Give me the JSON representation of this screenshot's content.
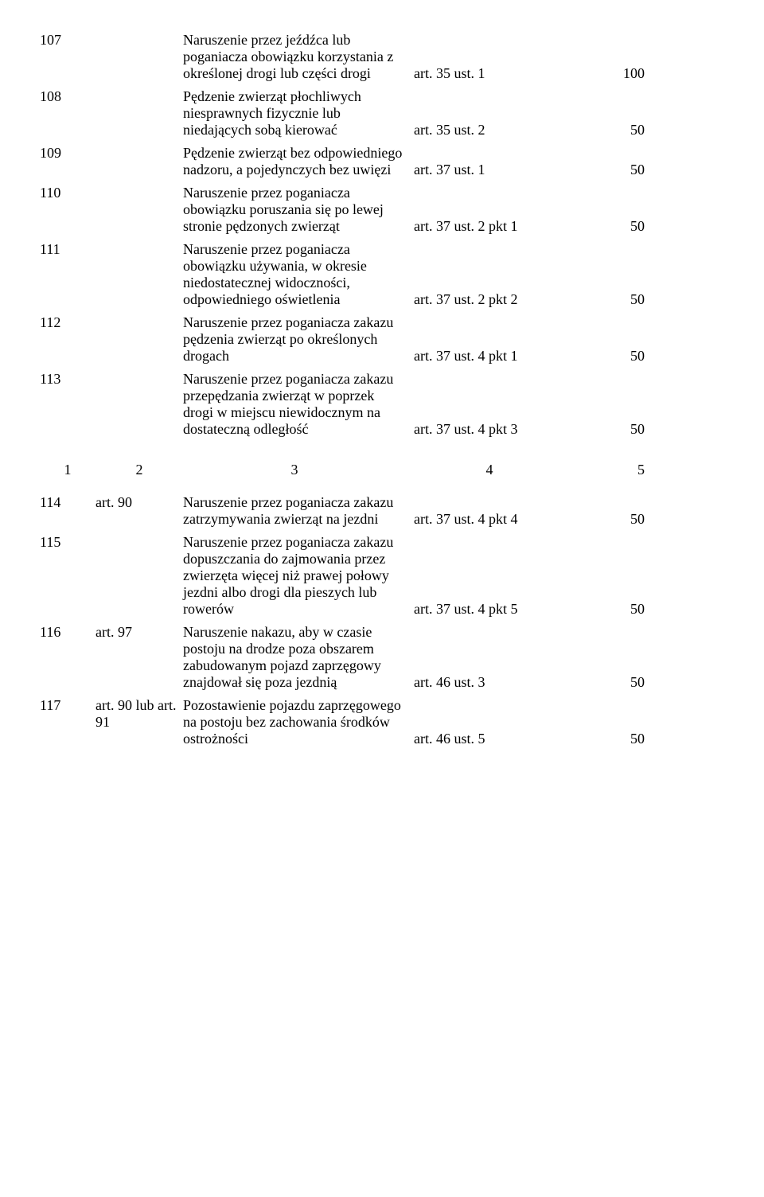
{
  "rows_upper": [
    {
      "num": "107",
      "code": "",
      "desc": "Naruszenie przez jeźdźca lub poganiacza obowiązku korzystania z określonej drogi lub części drogi",
      "ref": "art. 35 ust. 1",
      "val": "100"
    },
    {
      "num": "108",
      "code": "",
      "desc": "Pędzenie zwierząt płochliwych niesprawnych fizycznie lub niedających sobą kierować",
      "ref": "art. 35 ust. 2",
      "val": "50"
    },
    {
      "num": "109",
      "code": "",
      "desc": "Pędzenie zwierząt bez odpowiedniego nadzoru, a pojedynczych bez uwięzi",
      "ref": "art. 37 ust. 1",
      "val": "50"
    },
    {
      "num": "110",
      "code": "",
      "desc": "Naruszenie przez poganiacza obowiązku poruszania się po lewej stronie pędzonych zwierząt",
      "ref": "art. 37 ust. 2 pkt 1",
      "val": "50"
    },
    {
      "num": "111",
      "code": "",
      "desc": "Naruszenie przez poganiacza obowiązku używania, w okresie niedostatecznej widoczności, odpowiedniego oświetlenia",
      "ref": "art. 37 ust. 2 pkt 2",
      "val": "50"
    },
    {
      "num": "112",
      "code": "",
      "desc": "Naruszenie przez poganiacza zakazu pędzenia zwierząt po określonych drogach",
      "ref": "art. 37 ust. 4 pkt 1",
      "val": "50"
    },
    {
      "num": "113",
      "code": "",
      "desc": "Naruszenie przez poganiacza zakazu przepędzania zwierząt w poprzek drogi w miejscu niewidocznym na dostateczną odległość",
      "ref": "art. 37 ust. 4 pkt 3",
      "val": "50"
    }
  ],
  "header": {
    "c1": "1",
    "c2": "2",
    "c3": "3",
    "c4": "4",
    "c5": "5"
  },
  "rows_lower": [
    {
      "num": "114",
      "code": "art. 90",
      "desc": "Naruszenie przez poganiacza zakazu zatrzymywania zwierząt na jezdni",
      "ref": "art. 37 ust. 4 pkt 4",
      "val": "50"
    },
    {
      "num": "115",
      "code": "",
      "desc": "Naruszenie przez poganiacza zakazu dopuszczania do zajmowania przez zwierzęta więcej niż prawej połowy jezdni albo drogi dla pieszych lub rowerów",
      "ref": "art. 37 ust. 4 pkt 5",
      "val": "50"
    },
    {
      "num": "116",
      "code": "art. 97",
      "desc": "Naruszenie nakazu, aby w czasie postoju na drodze poza obszarem zabudowanym pojazd zaprzęgowy znajdował się poza jezdnią",
      "ref": "art. 46 ust. 3",
      "val": "50"
    },
    {
      "num": "117",
      "code": "art. 90 lub art. 91",
      "desc": "Pozostawienie pojazdu zaprzęgowego na postoju bez zachowania środków ostrożności",
      "ref": "art. 46 ust. 5",
      "val": "50"
    }
  ]
}
